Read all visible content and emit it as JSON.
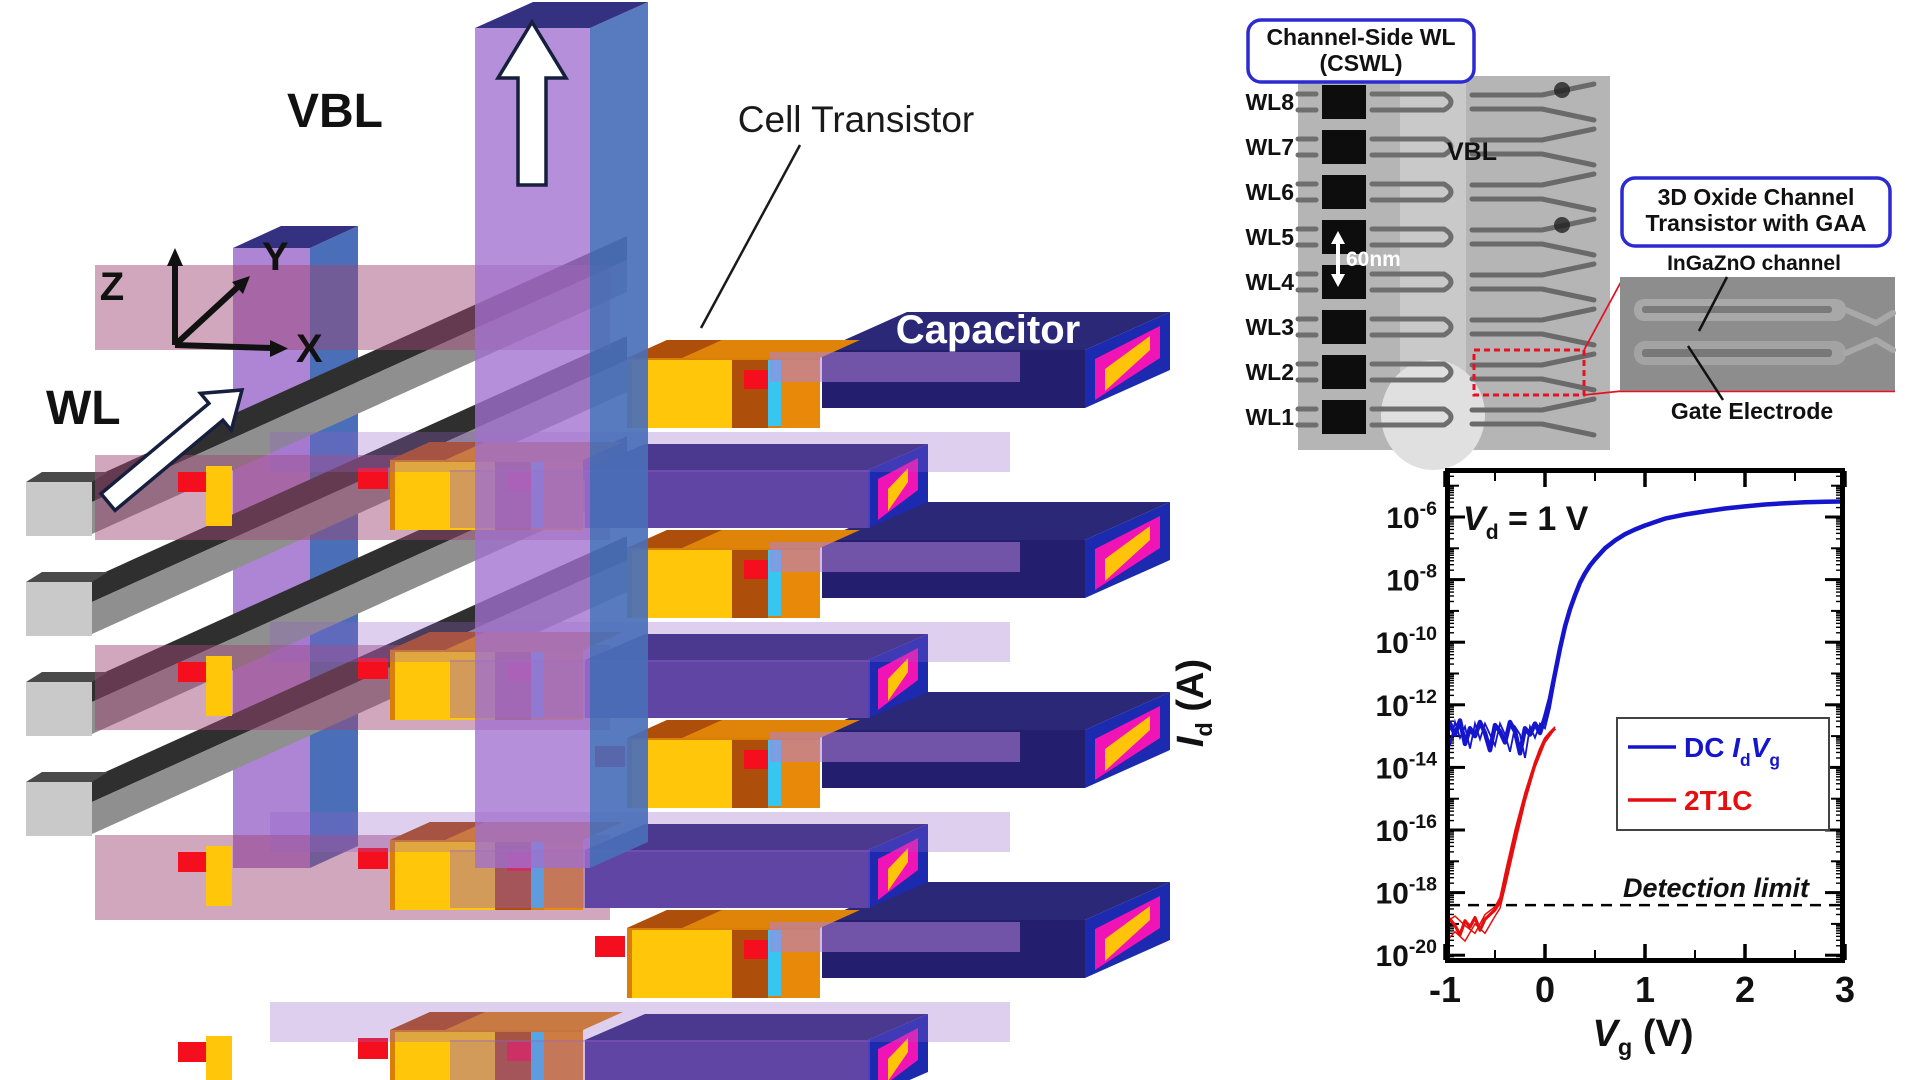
{
  "schematic": {
    "vbl_label": "VBL",
    "wl_label": "WL",
    "cell_transistor_label": "Cell Transistor",
    "capacitor_label": "Capacitor",
    "axes": {
      "z": "Z",
      "y": "Y",
      "x": "X"
    },
    "colors": {
      "pillar_front": "#9e71cc",
      "pillar_side": "#4a6fb8",
      "pillar_top": "#353181",
      "wordline_dark": "#2f2f2f",
      "wordline_gray": "#8f8f8f",
      "wordline_cap": "#c9c9c9",
      "transistor_orange": "#e08409",
      "transistor_yellow": "#ffc60a",
      "transistor_brown": "#ae4e0b",
      "transistor_cyan": "#38c6f0",
      "contact_red": "#f50f1e",
      "capacitor_navy": "#23206b",
      "capacitor_magenta": "#f013b5",
      "capacitor_yellow_core": "#ffc40a"
    }
  },
  "tem_panel": {
    "callout": [
      "Channel-Side WL",
      "(CSWL)"
    ],
    "wordline_labels": [
      "WL8",
      "WL7",
      "WL6",
      "WL5",
      "WL4",
      "WL3",
      "WL2",
      "WL1"
    ],
    "vbl_label": "VBL",
    "scale_label": "60nm"
  },
  "inset_panel": {
    "callout": [
      "3D Oxide Channel",
      "Transistor with GAA"
    ],
    "channel_label": "InGaZnO channel",
    "gate_label": "Gate Electrode"
  },
  "chart_data": {
    "type": "line",
    "title": "",
    "xlabel_text": "Vg (V)",
    "ylabel_text": "Id (A)",
    "annotation_text": "Vd = 1 V",
    "xlabel_parts": [
      {
        "t": "V",
        "style": "bi"
      },
      {
        "t": "g",
        "style": "sub"
      },
      {
        "t": " (V)",
        "style": "b"
      }
    ],
    "ylabel_parts": [
      {
        "t": "I",
        "style": "bi"
      },
      {
        "t": "d",
        "style": "sub"
      },
      {
        "t": " (A)",
        "style": "b"
      }
    ],
    "annotation_parts": [
      {
        "t": "V",
        "style": "bi"
      },
      {
        "t": "d",
        "style": "sub"
      },
      {
        "t": " = 1 V",
        "style": "b"
      }
    ],
    "xlim": [
      -1,
      3
    ],
    "x_ticks": [
      -1,
      0,
      1,
      2,
      3
    ],
    "x_minor_step": 0.5,
    "y_tick_exponents": [
      -6,
      -8,
      -10,
      -12,
      -14,
      -16,
      -18,
      -20
    ],
    "ylim_log10": [
      -20.3,
      -4.45
    ],
    "grid": false,
    "legend_position": "lower right inside plot",
    "detection_limit": {
      "label": "Detection limit",
      "log10_value": -18.4
    },
    "legend": [
      {
        "label_text": "DC IdVg",
        "color": "#1515cc",
        "label_parts": [
          {
            "t": "DC ",
            "style": "b"
          },
          {
            "t": "I",
            "style": "bi"
          },
          {
            "t": "d",
            "style": "sub"
          },
          {
            "t": "V",
            "style": "bi"
          },
          {
            "t": "g",
            "style": "sub"
          }
        ]
      },
      {
        "label_text": "2T1C",
        "color": "#e60f0f",
        "label_parts": [
          {
            "t": "2T1C",
            "style": "b"
          }
        ]
      }
    ],
    "series": [
      {
        "name": "DC IdVg",
        "color": "#1515cc",
        "points": [
          [
            -1,
            -13.1
          ],
          [
            -0.95,
            -12.6
          ],
          [
            -0.9,
            -12.95
          ],
          [
            -0.85,
            -12.5
          ],
          [
            -0.8,
            -13.25
          ],
          [
            -0.75,
            -12.75
          ],
          [
            -0.7,
            -13.0
          ],
          [
            -0.65,
            -12.55
          ],
          [
            -0.6,
            -12.9
          ],
          [
            -0.55,
            -13.45
          ],
          [
            -0.5,
            -12.65
          ],
          [
            -0.45,
            -12.85
          ],
          [
            -0.4,
            -13.2
          ],
          [
            -0.35,
            -12.55
          ],
          [
            -0.3,
            -12.85
          ],
          [
            -0.25,
            -13.55
          ],
          [
            -0.2,
            -12.75
          ],
          [
            -0.15,
            -12.95
          ],
          [
            -0.1,
            -12.6
          ],
          [
            -0.05,
            -12.9
          ],
          [
            0,
            -12.4
          ],
          [
            0.05,
            -11.8
          ],
          [
            0.1,
            -11.0
          ],
          [
            0.15,
            -10.2
          ],
          [
            0.2,
            -9.5
          ],
          [
            0.25,
            -8.95
          ],
          [
            0.3,
            -8.5
          ],
          [
            0.35,
            -8.1
          ],
          [
            0.4,
            -7.8
          ],
          [
            0.45,
            -7.55
          ],
          [
            0.5,
            -7.35
          ],
          [
            0.6,
            -7.0
          ],
          [
            0.7,
            -6.75
          ],
          [
            0.8,
            -6.55
          ],
          [
            0.9,
            -6.4
          ],
          [
            1,
            -6.27
          ],
          [
            1.2,
            -6.05
          ],
          [
            1.4,
            -5.92
          ],
          [
            1.6,
            -5.82
          ],
          [
            1.8,
            -5.73
          ],
          [
            2,
            -5.66
          ],
          [
            2.2,
            -5.6
          ],
          [
            2.4,
            -5.56
          ],
          [
            2.6,
            -5.53
          ],
          [
            2.8,
            -5.51
          ],
          [
            3,
            -5.5
          ]
        ],
        "extra_traces": [
          [
            [
              -1,
              -12.75
            ],
            [
              -0.95,
              -13.3
            ],
            [
              -0.9,
              -12.55
            ],
            [
              -0.85,
              -13.05
            ],
            [
              -0.8,
              -12.7
            ],
            [
              -0.75,
              -13.4
            ],
            [
              -0.7,
              -12.6
            ],
            [
              -0.65,
              -13.1
            ],
            [
              -0.6,
              -12.6
            ],
            [
              -0.55,
              -12.95
            ],
            [
              -0.5,
              -13.3
            ],
            [
              -0.45,
              -12.6
            ],
            [
              -0.4,
              -12.95
            ],
            [
              -0.35,
              -13.5
            ],
            [
              -0.3,
              -12.7
            ],
            [
              -0.25,
              -12.95
            ],
            [
              -0.2,
              -13.7
            ],
            [
              -0.15,
              -12.7
            ],
            [
              -0.1,
              -13.05
            ],
            [
              -0.05,
              -12.6
            ],
            [
              0,
              -12.75
            ],
            [
              0.05,
              -12.1
            ],
            [
              0.1,
              -11.2
            ]
          ]
        ]
      },
      {
        "name": "2T1C",
        "color": "#e60f0f",
        "points": [
          [
            -1,
            -19.25
          ],
          [
            -0.95,
            -18.85
          ],
          [
            -0.9,
            -19.05
          ],
          [
            -0.85,
            -19.35
          ],
          [
            -0.8,
            -18.9
          ],
          [
            -0.75,
            -19.1
          ],
          [
            -0.7,
            -18.8
          ],
          [
            -0.65,
            -19.2
          ],
          [
            -0.6,
            -18.85
          ],
          [
            -0.55,
            -18.7
          ],
          [
            -0.5,
            -18.55
          ],
          [
            -0.45,
            -18.3
          ],
          [
            -0.4,
            -17.6
          ],
          [
            -0.35,
            -16.9
          ],
          [
            -0.3,
            -16.2
          ],
          [
            -0.25,
            -15.55
          ],
          [
            -0.2,
            -14.95
          ],
          [
            -0.15,
            -14.4
          ],
          [
            -0.1,
            -13.9
          ],
          [
            -0.05,
            -13.45
          ],
          [
            0,
            -13.1
          ],
          [
            0.05,
            -12.9
          ],
          [
            0.1,
            -12.75
          ]
        ],
        "extra_traces": [
          [
            [
              -1,
              -19.6
            ],
            [
              -0.9,
              -19.25
            ],
            [
              -0.8,
              -19.55
            ],
            [
              -0.7,
              -19.0
            ],
            [
              -0.6,
              -19.3
            ],
            [
              -0.5,
              -18.75
            ],
            [
              -0.45,
              -18.5
            ],
            [
              -0.4,
              -17.85
            ],
            [
              -0.3,
              -16.45
            ],
            [
              -0.2,
              -15.1
            ],
            [
              -0.1,
              -14.0
            ],
            [
              0,
              -13.2
            ],
            [
              0.08,
              -12.85
            ]
          ],
          [
            [
              -1,
              -18.95
            ],
            [
              -0.9,
              -18.75
            ],
            [
              -0.8,
              -19.05
            ],
            [
              -0.7,
              -19.3
            ],
            [
              -0.6,
              -18.7
            ],
            [
              -0.5,
              -18.45
            ],
            [
              -0.45,
              -18.15
            ],
            [
              -0.4,
              -17.4
            ],
            [
              -0.3,
              -16.0
            ],
            [
              -0.2,
              -14.8
            ],
            [
              -0.1,
              -13.8
            ],
            [
              0,
              -13.05
            ],
            [
              0.1,
              -12.7
            ]
          ]
        ]
      }
    ]
  }
}
